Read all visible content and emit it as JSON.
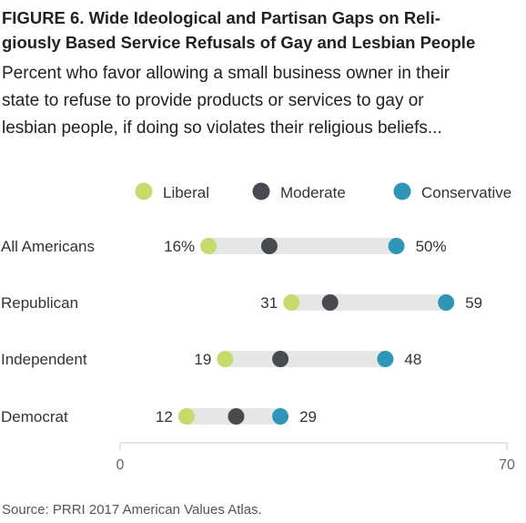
{
  "title_line1": "FIGURE 6.  Wide Ideological and Partisan Gaps on Reli-",
  "title_line2": "giously Based Service Refusals of Gay and Lesbian People",
  "subtitle_line1": "Percent who favor allowing a small business owner in their",
  "subtitle_line2": "state to refuse to provide products or services to gay or",
  "subtitle_line3": "lesbian people, if doing so violates their religious beliefs...",
  "source": "Source: PRRI 2017 American Values Atlas.",
  "colors": {
    "liberal": "#c5dc6d",
    "moderate": "#474b4f",
    "conservative": "#2f96b8",
    "bar": "#e6e6e6",
    "axis": "#cccccc",
    "text": "#333333",
    "tick_text": "#666666"
  },
  "chart_data": {
    "type": "dot",
    "categories": [
      "All Americans",
      "Republican",
      "Independent",
      "Democrat"
    ],
    "series": [
      {
        "name": "Liberal",
        "color_key": "liberal",
        "values": [
          16,
          31,
          19,
          12
        ]
      },
      {
        "name": "Moderate",
        "color_key": "moderate",
        "values": [
          27,
          38,
          29,
          21
        ]
      },
      {
        "name": "Conservative",
        "color_key": "conservative",
        "values": [
          50,
          59,
          48,
          29
        ]
      }
    ],
    "left_labels": [
      "16%",
      "31",
      "19",
      "12"
    ],
    "right_labels": [
      "50%",
      "59",
      "48",
      "29"
    ],
    "xlim": [
      0,
      70
    ],
    "xticks": [
      "0",
      "70"
    ],
    "legend_position": "top",
    "grid": false
  }
}
